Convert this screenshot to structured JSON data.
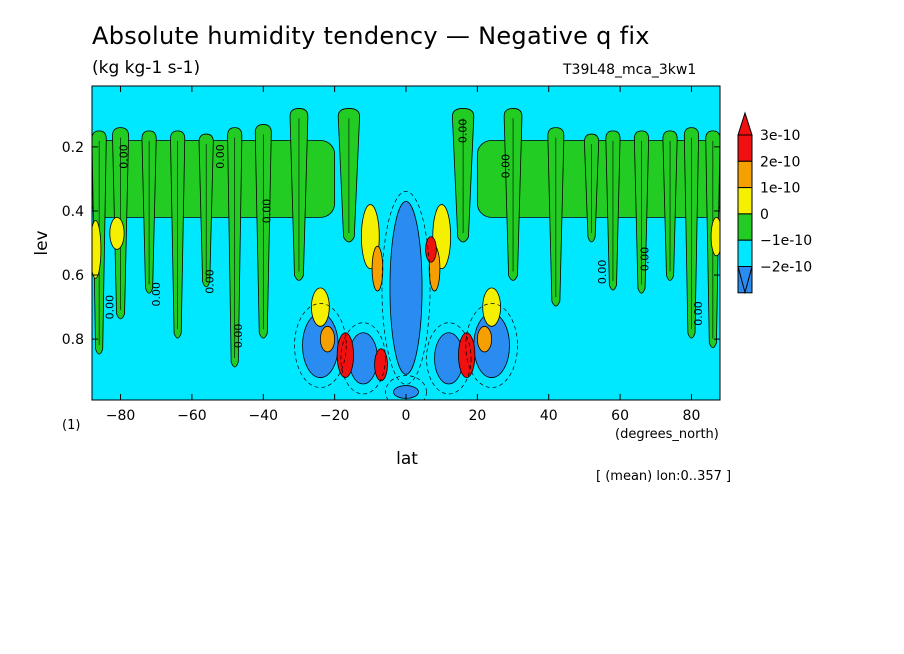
{
  "header": {
    "title": "Absolute humidity tendency — Negative q fix",
    "units": "(kg kg-1 s-1)",
    "run_id": "T39L48_mca_3kw1",
    "note": "[ (mean) lon:0..357 ]"
  },
  "chart_data": {
    "type": "heatmap",
    "xlabel": "lat",
    "x_units": "(degrees_north)",
    "ylabel": "lev",
    "y_units": "(1)",
    "xlim": [
      -88,
      88
    ],
    "ylim": [
      0.99,
      0.01
    ],
    "y_inverted": true,
    "x_ticks": [
      -80,
      -60,
      -40,
      -20,
      0,
      20,
      40,
      60,
      80
    ],
    "x_tick_labels": [
      "−80",
      "−60",
      "−40",
      "−20",
      "0",
      "20",
      "40",
      "60",
      "80"
    ],
    "y_ticks": [
      0.2,
      0.4,
      0.6,
      0.8
    ],
    "y_tick_labels": [
      "0.2",
      "0.4",
      "0.6",
      "0.8"
    ],
    "colorbar": {
      "levels": [
        {
          "label": "3e-10",
          "value": 3e-10,
          "color": "#f01010"
        },
        {
          "label": "2e-10",
          "value": 2e-10,
          "color": "#f5a000"
        },
        {
          "label": "1e-10",
          "value": 1e-10,
          "color": "#f5f000"
        },
        {
          "label": "0",
          "value": 0,
          "color": "#22cc22"
        },
        {
          "label": "−1e-10",
          "value": -1e-10,
          "color": "#00e8ff"
        },
        {
          "label": "−2e-10",
          "value": -2e-10,
          "color": "#2a8cf0"
        }
      ],
      "over_color": "#f01010",
      "under_color": "#2a8cf0",
      "background_color": "#00e8ff"
    },
    "regions": {
      "green_columns": [
        {
          "lat": -86,
          "top": 0.15,
          "bottom": 0.85,
          "width": 4
        },
        {
          "lat": -80,
          "top": 0.14,
          "bottom": 0.74,
          "width": 4.5
        },
        {
          "lat": -72,
          "top": 0.15,
          "bottom": 0.66,
          "width": 4
        },
        {
          "lat": -64,
          "top": 0.15,
          "bottom": 0.8,
          "width": 4
        },
        {
          "lat": -56,
          "top": 0.16,
          "bottom": 0.64,
          "width": 4
        },
        {
          "lat": -48,
          "top": 0.14,
          "bottom": 0.89,
          "width": 4
        },
        {
          "lat": -40,
          "top": 0.13,
          "bottom": 0.8,
          "width": 4.5
        },
        {
          "lat": -30,
          "top": 0.08,
          "bottom": 0.62,
          "width": 5
        },
        {
          "lat": -16,
          "top": 0.08,
          "bottom": 0.5,
          "width": 6
        },
        {
          "lat": 16,
          "top": 0.08,
          "bottom": 0.5,
          "width": 6
        },
        {
          "lat": 30,
          "top": 0.08,
          "bottom": 0.62,
          "width": 5
        },
        {
          "lat": 42,
          "top": 0.14,
          "bottom": 0.7,
          "width": 4.5
        },
        {
          "lat": 52,
          "top": 0.16,
          "bottom": 0.5,
          "width": 4
        },
        {
          "lat": 58,
          "top": 0.15,
          "bottom": 0.65,
          "width": 4
        },
        {
          "lat": 66,
          "top": 0.15,
          "bottom": 0.66,
          "width": 4
        },
        {
          "lat": 74,
          "top": 0.15,
          "bottom": 0.62,
          "width": 4
        },
        {
          "lat": 80,
          "top": 0.14,
          "bottom": 0.8,
          "width": 4
        },
        {
          "lat": 86,
          "top": 0.15,
          "bottom": 0.83,
          "width": 4
        }
      ],
      "green_bands": [
        {
          "lat_min": -88,
          "lat_max": -20,
          "top": 0.18,
          "bottom": 0.42
        },
        {
          "lat_min": 20,
          "lat_max": 88,
          "top": 0.18,
          "bottom": 0.42
        }
      ],
      "blue_patches": [
        {
          "lat": -24,
          "lev": 0.82,
          "rlat": 5,
          "rlev": 0.1
        },
        {
          "lat": -12,
          "lev": 0.86,
          "rlat": 4,
          "rlev": 0.08
        },
        {
          "lat": 0,
          "lev": 0.64,
          "rlat": 4.5,
          "rlev": 0.27
        },
        {
          "lat": 12,
          "lev": 0.86,
          "rlat": 4,
          "rlev": 0.08
        },
        {
          "lat": 24,
          "lev": 0.82,
          "rlat": 5,
          "rlev": 0.1
        },
        {
          "lat": 0,
          "lev": 0.965,
          "rlat": 3.5,
          "rlev": 0.02
        }
      ],
      "yellow_patches": [
        {
          "lat": -87,
          "lev": 0.52,
          "rlat": 1.5,
          "rlev": 0.09
        },
        {
          "lat": -81,
          "lev": 0.47,
          "rlat": 2,
          "rlev": 0.05
        },
        {
          "lat": -24,
          "lev": 0.7,
          "rlat": 2.5,
          "rlev": 0.06
        },
        {
          "lat": -10,
          "lev": 0.48,
          "rlat": 2.5,
          "rlev": 0.1
        },
        {
          "lat": 10,
          "lev": 0.48,
          "rlat": 2.5,
          "rlev": 0.1
        },
        {
          "lat": 24,
          "lev": 0.7,
          "rlat": 2.5,
          "rlev": 0.06
        },
        {
          "lat": 87,
          "lev": 0.48,
          "rlat": 1.5,
          "rlev": 0.06
        }
      ],
      "orange_patches": [
        {
          "lat": -22,
          "lev": 0.8,
          "rlat": 2,
          "rlev": 0.04
        },
        {
          "lat": -8,
          "lev": 0.58,
          "rlat": 1.5,
          "rlev": 0.07
        },
        {
          "lat": 8,
          "lev": 0.58,
          "rlat": 1.5,
          "rlev": 0.07
        },
        {
          "lat": 22,
          "lev": 0.8,
          "rlat": 2,
          "rlev": 0.04
        }
      ],
      "red_patches": [
        {
          "lat": -17,
          "lev": 0.85,
          "rlat": 2.3,
          "rlev": 0.07
        },
        {
          "lat": -7,
          "lev": 0.88,
          "rlat": 1.8,
          "rlev": 0.05
        },
        {
          "lat": 7,
          "lev": 0.52,
          "rlat": 1.5,
          "rlev": 0.04
        },
        {
          "lat": 17,
          "lev": 0.85,
          "rlat": 2.3,
          "rlev": 0.07
        }
      ]
    },
    "contour_labels": [
      {
        "text": "0.00",
        "lat": -78,
        "lev": 0.23,
        "angle": -90
      },
      {
        "text": "0.00",
        "lat": -51,
        "lev": 0.23,
        "angle": -90
      },
      {
        "text": "0.00",
        "lat": -38,
        "lev": 0.4,
        "angle": -90
      },
      {
        "text": "0.00",
        "lat": -82,
        "lev": 0.7,
        "angle": -90
      },
      {
        "text": "0.00",
        "lat": -69,
        "lev": 0.66,
        "angle": -90
      },
      {
        "text": "0.00",
        "lat": -54,
        "lev": 0.62,
        "angle": -90
      },
      {
        "text": "0.00",
        "lat": -46,
        "lev": 0.79,
        "angle": -90
      },
      {
        "text": "0.00",
        "lat": 17,
        "lev": 0.15,
        "angle": -90
      },
      {
        "text": "0.00",
        "lat": 29,
        "lev": 0.26,
        "angle": -90
      },
      {
        "text": "0.00",
        "lat": 56,
        "lev": 0.59,
        "angle": -90
      },
      {
        "text": "0.00",
        "lat": 68,
        "lev": 0.55,
        "angle": -90
      },
      {
        "text": "0.00",
        "lat": 83,
        "lev": 0.72,
        "angle": -90
      }
    ]
  }
}
